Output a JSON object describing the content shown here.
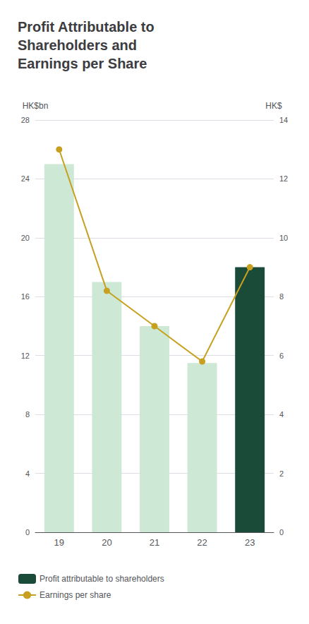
{
  "chart_data": {
    "type": "bar",
    "title": "Profit Attributable to\nShareholders and\nEarnings per Share",
    "ylabel": "HK$bn",
    "y2label": "HK$",
    "categories": [
      "19",
      "20",
      "21",
      "22",
      "23"
    ],
    "series": [
      {
        "name": "Profit attributable to shareholders",
        "type": "bar",
        "color": "#1a4a38",
        "colors": [
          "#cde8d4",
          "#cde8d4",
          "#cde8d4",
          "#cde8d4",
          "#1a4a38"
        ],
        "values": [
          25.0,
          17.0,
          14.0,
          11.5,
          18.0
        ]
      },
      {
        "name": "Earnings per share",
        "type": "line",
        "axis": "y2",
        "color": "#c8a020",
        "marker": "circle",
        "values": [
          13.0,
          8.2,
          7.0,
          5.8,
          9.0
        ]
      }
    ],
    "ylim": [
      0,
      28
    ],
    "yticks": [
      0,
      4,
      8,
      12,
      16,
      20,
      24,
      28
    ],
    "y2lim": [
      0,
      14
    ],
    "y2ticks": [
      0,
      2,
      4,
      6,
      8,
      10,
      12,
      14
    ],
    "grid": true,
    "legend": "bottom left"
  }
}
